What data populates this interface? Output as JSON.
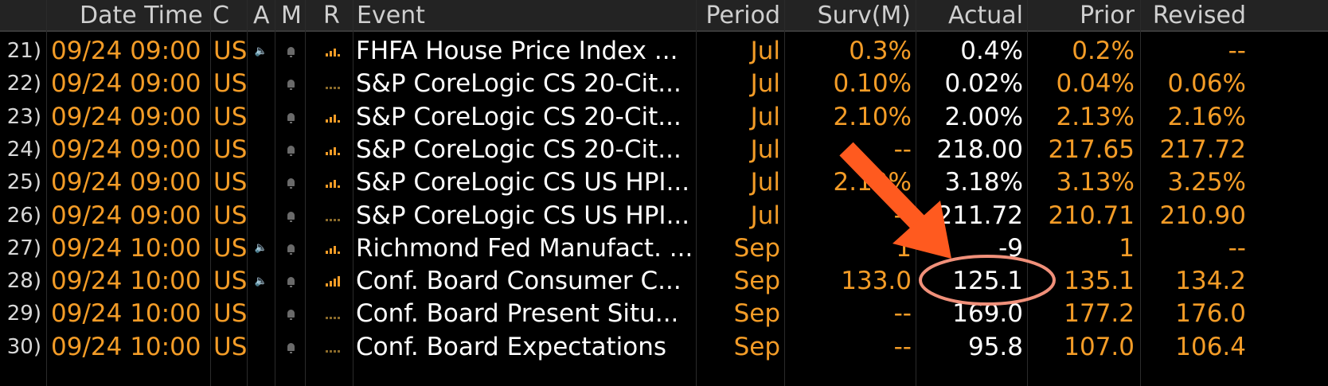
{
  "headers": {
    "datetime": "Date Time",
    "c": "C",
    "a": "A",
    "m": "M",
    "r": "R",
    "event": "Event",
    "period": "Period",
    "surv": "Surv(M)",
    "actual": "Actual",
    "prior": "Prior",
    "revised": "Revised"
  },
  "colors": {
    "accent": "#f39c27",
    "annotation": "#ff5a1f",
    "circle": "#f0907a"
  },
  "rows": [
    {
      "idx": "21)",
      "datetime": "09/24 09:00",
      "c": "US",
      "audio": true,
      "rel": "bars",
      "event": "FHFA House Price Index ...",
      "period": "Jul",
      "surv": "0.3%",
      "actual": "0.4%",
      "prior": "0.2%",
      "revised": "--"
    },
    {
      "idx": "22)",
      "datetime": "09/24 09:00",
      "c": "US",
      "audio": false,
      "rel": "dots",
      "event": "S&P CoreLogic CS 20-Cit...",
      "period": "Jul",
      "surv": "0.10%",
      "actual": "0.02%",
      "prior": "0.04%",
      "revised": "0.06%"
    },
    {
      "idx": "23)",
      "datetime": "09/24 09:00",
      "c": "US",
      "audio": false,
      "rel": "bars",
      "event": "S&P CoreLogic CS 20-Cit...",
      "period": "Jul",
      "surv": "2.10%",
      "actual": "2.00%",
      "prior": "2.13%",
      "revised": "2.16%"
    },
    {
      "idx": "24)",
      "datetime": "09/24 09:00",
      "c": "US",
      "audio": false,
      "rel": "bars",
      "event": "S&P CoreLogic CS 20-Cit...",
      "period": "Jul",
      "surv": "--",
      "actual": "218.00",
      "prior": "217.65",
      "revised": "217.72"
    },
    {
      "idx": "25)",
      "datetime": "09/24 09:00",
      "c": "US",
      "audio": false,
      "rel": "bars",
      "event": "S&P CoreLogic CS US HPI...",
      "period": "Jul",
      "surv": "2.10%",
      "actual": "3.18%",
      "prior": "3.13%",
      "revised": "3.25%"
    },
    {
      "idx": "26)",
      "datetime": "09/24 09:00",
      "c": "US",
      "audio": false,
      "rel": "dots",
      "event": "S&P CoreLogic CS US HPI...",
      "period": "Jul",
      "surv": "--",
      "actual": "211.72",
      "prior": "210.71",
      "revised": "210.90"
    },
    {
      "idx": "27)",
      "datetime": "09/24 10:00",
      "c": "US",
      "audio": true,
      "rel": "bars",
      "event": "Richmond Fed Manufact. ...",
      "period": "Sep",
      "surv": "1",
      "actual": "-9",
      "prior": "1",
      "revised": "--"
    },
    {
      "idx": "28)",
      "datetime": "09/24 10:00",
      "c": "US",
      "audio": true,
      "rel": "bars4",
      "event": "Conf. Board Consumer C...",
      "period": "Sep",
      "surv": "133.0",
      "actual": "125.1",
      "prior": "135.1",
      "revised": "134.2"
    },
    {
      "idx": "29)",
      "datetime": "09/24 10:00",
      "c": "US",
      "audio": false,
      "rel": "dots",
      "event": "Conf. Board Present Situ...",
      "period": "Sep",
      "surv": "--",
      "actual": "169.0",
      "prior": "177.2",
      "revised": "176.0"
    },
    {
      "idx": "30)",
      "datetime": "09/24 10:00",
      "c": "US",
      "audio": false,
      "rel": "dots",
      "event": "Conf. Board Expectations",
      "period": "Sep",
      "surv": "--",
      "actual": "95.8",
      "prior": "107.0",
      "revised": "106.4"
    }
  ]
}
